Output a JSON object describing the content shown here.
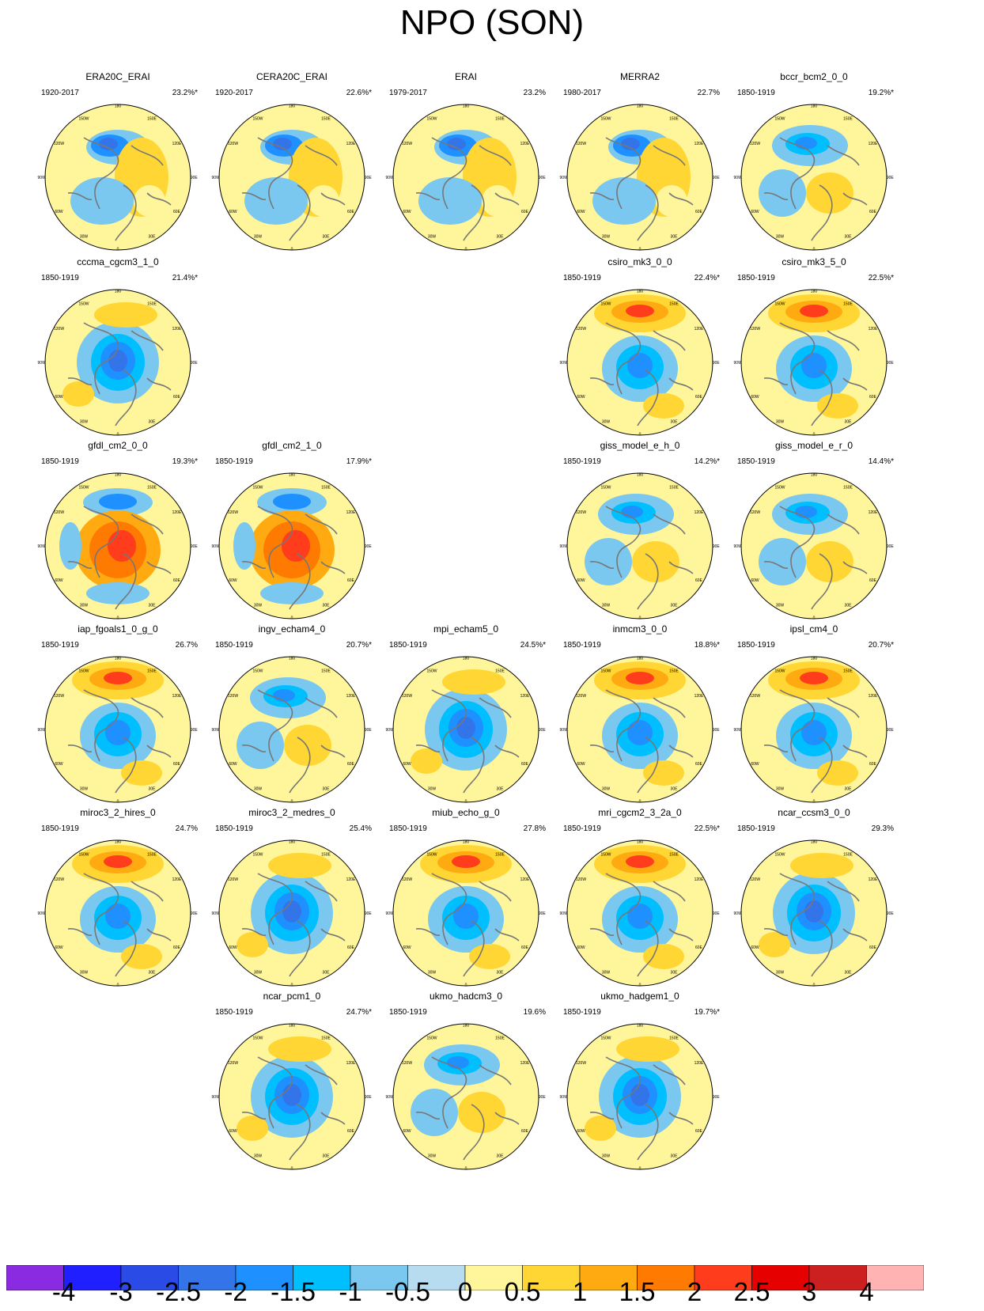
{
  "title": "NPO (SON)",
  "chart_data": {
    "type": "heatmap",
    "title": "NPO (SON)",
    "projection": "north polar stereographic",
    "lon_labels": [
      "180",
      "150E",
      "120E",
      "90E",
      "60E",
      "30E",
      "0",
      "30W",
      "60W",
      "90W",
      "120W",
      "150W"
    ],
    "colorbar": {
      "labels": [
        "-4",
        "-3",
        "-2.5",
        "-2",
        "-1.5",
        "-1",
        "-0.5",
        "0",
        "0.5",
        "1",
        "1.5",
        "2",
        "2.5",
        "3",
        "4"
      ],
      "colors": [
        "#8a2be2",
        "#1f1fff",
        "#2b4be6",
        "#3375e8",
        "#1f90ff",
        "#00bfff",
        "#7ac7f0",
        "#b7dcf0",
        "#fff59a",
        "#ffd633",
        "#ffaa10",
        "#ff7a00",
        "#ff3c1c",
        "#e60000",
        "#cc1f1f",
        "#ffb3b3"
      ]
    },
    "panels": [
      {
        "name": "ERA20C_ERAI",
        "period": "1920-2017",
        "percent": "23.2%*",
        "pattern": "reanalysis"
      },
      {
        "name": "CERA20C_ERAI",
        "period": "1920-2017",
        "percent": "22.6%*",
        "pattern": "reanalysis"
      },
      {
        "name": "ERAI",
        "period": "1979-2017",
        "percent": "23.2%",
        "pattern": "reanalysis"
      },
      {
        "name": "MERRA2",
        "period": "1980-2017",
        "percent": "22.7%",
        "pattern": "reanalysis"
      },
      {
        "name": "bccr_bcm2_0_0",
        "period": "1850-1919",
        "percent": "19.2%*",
        "pattern": "weak"
      },
      {
        "name": "cccma_cgcm3_1_0",
        "period": "1850-1919",
        "percent": "21.4%*",
        "pattern": "central-low"
      },
      {
        "name": "csiro_mk3_0_0",
        "period": "1850-1919",
        "percent": "22.4%*",
        "pattern": "dipole"
      },
      {
        "name": "csiro_mk3_5_0",
        "period": "1850-1919",
        "percent": "22.5%*",
        "pattern": "dipole"
      },
      {
        "name": "gfdl_cm2_0_0",
        "period": "1850-1919",
        "percent": "19.3%*",
        "pattern": "central-high"
      },
      {
        "name": "gfdl_cm2_1_0",
        "period": "1850-1919",
        "percent": "17.9%*",
        "pattern": "central-high"
      },
      {
        "name": "giss_model_e_h_0",
        "period": "1850-1919",
        "percent": "14.2%*",
        "pattern": "weak"
      },
      {
        "name": "giss_model_e_r_0",
        "period": "1850-1919",
        "percent": "14.4%*",
        "pattern": "weak"
      },
      {
        "name": "iap_fgoals1_0_g_0",
        "period": "1850-1919",
        "percent": "26.7%",
        "pattern": "dipole"
      },
      {
        "name": "ingv_echam4_0",
        "period": "1850-1919",
        "percent": "20.7%*",
        "pattern": "weak"
      },
      {
        "name": "mpi_echam5_0",
        "period": "1850-1919",
        "percent": "24.5%*",
        "pattern": "central-low"
      },
      {
        "name": "inmcm3_0_0",
        "period": "1850-1919",
        "percent": "18.8%*",
        "pattern": "dipole"
      },
      {
        "name": "ipsl_cm4_0",
        "period": "1850-1919",
        "percent": "20.7%*",
        "pattern": "dipole"
      },
      {
        "name": "miroc3_2_hires_0",
        "period": "1850-1919",
        "percent": "24.7%",
        "pattern": "dipole"
      },
      {
        "name": "miroc3_2_medres_0",
        "period": "1850-1919",
        "percent": "25.4%",
        "pattern": "central-low"
      },
      {
        "name": "miub_echo_g_0",
        "period": "1850-1919",
        "percent": "27.8%",
        "pattern": "dipole"
      },
      {
        "name": "mri_cgcm2_3_2a_0",
        "period": "1850-1919",
        "percent": "22.5%*",
        "pattern": "dipole"
      },
      {
        "name": "ncar_ccsm3_0_0",
        "period": "1850-1919",
        "percent": "29.3%",
        "pattern": "central-low"
      },
      {
        "name": "ncar_pcm1_0",
        "period": "1850-1919",
        "percent": "24.7%*",
        "pattern": "central-low"
      },
      {
        "name": "ukmo_hadcm3_0",
        "period": "1850-1919",
        "percent": "19.6%",
        "pattern": "weak"
      },
      {
        "name": "ukmo_hadgem1_0",
        "period": "1850-1919",
        "percent": "19.7%*",
        "pattern": "central-low"
      }
    ]
  }
}
